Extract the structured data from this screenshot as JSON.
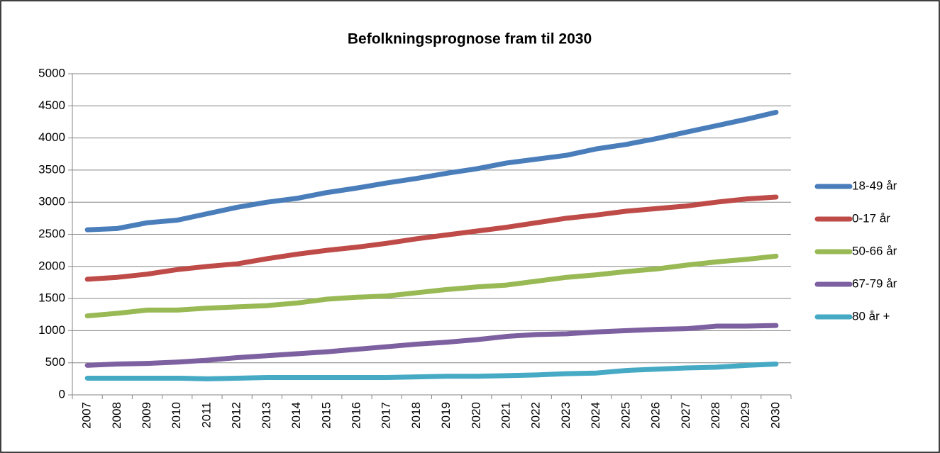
{
  "chart_data": {
    "type": "line",
    "title": "Befolkningsprognose fram til 2030",
    "categories": [
      "2007",
      "2008",
      "2009",
      "2010",
      "2011",
      "2012",
      "2013",
      "2014",
      "2015",
      "2016",
      "2017",
      "2018",
      "2019",
      "2020",
      "2021",
      "2022",
      "2023",
      "2024",
      "2025",
      "2026",
      "2027",
      "2028",
      "2029",
      "2030"
    ],
    "series": [
      {
        "name": "18-49 år",
        "color": "#4a7ebb",
        "values": [
          2570,
          2590,
          2680,
          2720,
          2820,
          2920,
          3000,
          3060,
          3150,
          3220,
          3300,
          3370,
          3450,
          3520,
          3610,
          3670,
          3730,
          3830,
          3900,
          3990,
          4090,
          4190,
          4290,
          4400
        ]
      },
      {
        "name": "0-17 år",
        "color": "#be4b48",
        "values": [
          1800,
          1830,
          1880,
          1950,
          2000,
          2040,
          2120,
          2190,
          2250,
          2300,
          2360,
          2430,
          2490,
          2550,
          2610,
          2680,
          2750,
          2800,
          2860,
          2900,
          2940,
          3000,
          3050,
          3080
        ]
      },
      {
        "name": "50-66 år",
        "color": "#98b954",
        "values": [
          1230,
          1270,
          1320,
          1320,
          1350,
          1370,
          1390,
          1430,
          1490,
          1520,
          1540,
          1590,
          1640,
          1680,
          1710,
          1770,
          1830,
          1870,
          1920,
          1960,
          2020,
          2070,
          2110,
          2160
        ]
      },
      {
        "name": "67-79 år",
        "color": "#7d60a0",
        "values": [
          460,
          480,
          490,
          510,
          540,
          580,
          610,
          640,
          670,
          710,
          750,
          790,
          820,
          860,
          910,
          940,
          950,
          980,
          1000,
          1020,
          1030,
          1070,
          1070,
          1080
        ]
      },
      {
        "name": "80 år +",
        "color": "#46aac5",
        "values": [
          260,
          260,
          260,
          260,
          250,
          260,
          270,
          270,
          270,
          270,
          270,
          280,
          290,
          290,
          300,
          310,
          330,
          340,
          380,
          400,
          420,
          430,
          460,
          480
        ]
      }
    ],
    "ylim": [
      0,
      5000
    ],
    "yticks": [
      0,
      500,
      1000,
      1500,
      2000,
      2500,
      3000,
      3500,
      4000,
      4500,
      5000
    ],
    "grid": true,
    "legend": "right"
  }
}
